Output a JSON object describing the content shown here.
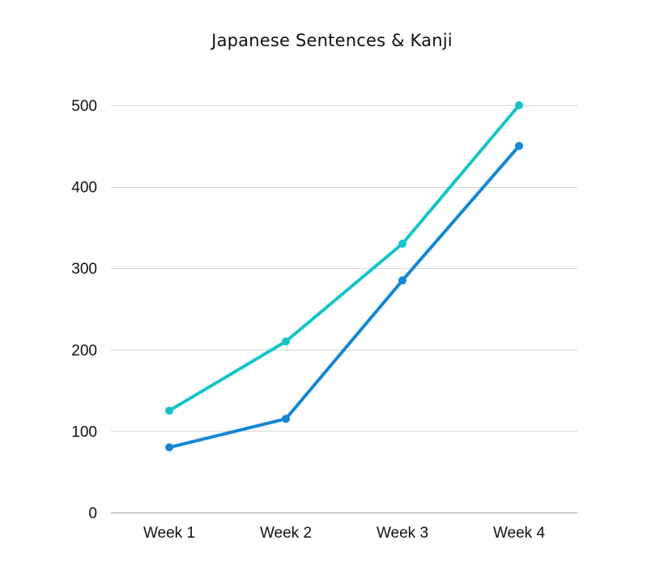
{
  "chart_data": {
    "type": "line",
    "title": "Japanese Sentences & Kanji",
    "categories": [
      "Week 1",
      "Week 2",
      "Week 3",
      "Week 4"
    ],
    "series": [
      {
        "color": "#14c4c8",
        "values": [
          125,
          210,
          330,
          500
        ]
      },
      {
        "color": "#1486d4",
        "values": [
          80,
          115,
          285,
          450
        ]
      }
    ],
    "ylim": [
      0,
      500
    ],
    "yticks": [
      0,
      100,
      200,
      300,
      400,
      500
    ],
    "grid": true,
    "legend": "none"
  }
}
